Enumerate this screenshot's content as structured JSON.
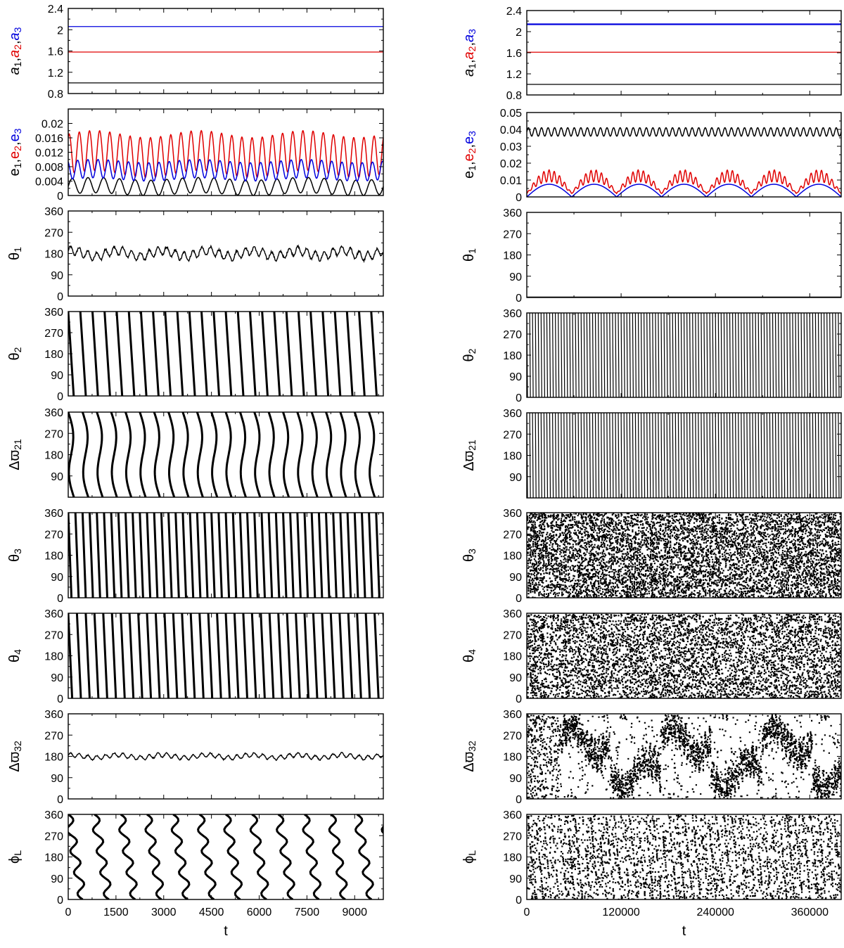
{
  "figure": {
    "columns": [
      {
        "xlabel": "t",
        "x_ticks": [
          0,
          1500,
          3000,
          4500,
          6000,
          7500,
          9000
        ],
        "x_range": [
          0,
          9900
        ]
      },
      {
        "xlabel": "t",
        "x_ticks": [
          0,
          120000,
          240000,
          360000
        ],
        "x_range": [
          0,
          400000
        ]
      }
    ],
    "colors": {
      "body1": "#000000",
      "body2": "#e00000",
      "body3": "#0000dd"
    }
  },
  "chart_data": [
    {
      "panel": "L-a",
      "type": "line",
      "ylabel_parts": [
        "a",
        "1",
        ",",
        "a",
        "2",
        ",",
        "a",
        "3"
      ],
      "ylim": [
        0.8,
        2.4
      ],
      "yticks": [
        "0.8",
        "1.2",
        "1.6",
        "2",
        "2.4"
      ],
      "series": [
        {
          "values": [
            1.0
          ]
        },
        {
          "values": [
            1.58
          ]
        },
        {
          "values": [
            2.06
          ]
        }
      ]
    },
    {
      "panel": "L-e",
      "type": "line",
      "ylabel_parts": [
        "e",
        "1",
        ",",
        "e",
        "2",
        ",",
        "e",
        "3"
      ],
      "ylim": [
        0,
        0.024
      ],
      "yticks": [
        "0",
        "0.004",
        "0.008",
        "0.012",
        "0.016",
        "0.02"
      ],
      "series": [
        {
          "min": 0.0,
          "max": 0.005
        },
        {
          "min": 0.005,
          "max": 0.018
        },
        {
          "min": 0.004,
          "max": 0.01
        }
      ]
    },
    {
      "panel": "L-th1",
      "type": "line",
      "ylabel": "θ",
      "ylabel_sub": "1",
      "ylim": [
        0,
        360
      ],
      "yticks": [
        "0",
        "90",
        "180",
        "270",
        "360"
      ],
      "series": [
        {
          "mean": 180,
          "amplitude": 30
        }
      ]
    },
    {
      "panel": "L-th2",
      "type": "scatter",
      "ylabel": "θ",
      "ylabel_sub": "2",
      "ylim": [
        0,
        360
      ],
      "yticks": [
        "0",
        "90",
        "180",
        "270",
        "360"
      ],
      "series": [
        {
          "cycles": 26
        }
      ]
    },
    {
      "panel": "L-dw21",
      "type": "scatter",
      "ylabel": "Δϖ",
      "ylabel_sub": "21",
      "ylim": [
        0,
        360
      ],
      "yticks": [
        "90",
        "180",
        "270",
        "360"
      ],
      "series": [
        {
          "cycles": 22
        }
      ]
    },
    {
      "panel": "L-th3",
      "type": "scatter",
      "ylabel": "θ",
      "ylabel_sub": "3",
      "ylim": [
        0,
        360
      ],
      "yticks": [
        "0",
        "90",
        "180",
        "270",
        "360"
      ],
      "series": [
        {
          "cycles": 44
        }
      ]
    },
    {
      "panel": "L-th4",
      "type": "scatter",
      "ylabel": "θ",
      "ylabel_sub": "4",
      "ylim": [
        0,
        360
      ],
      "yticks": [
        "0",
        "90",
        "180",
        "270",
        "360"
      ],
      "series": [
        {
          "cycles": 36
        }
      ]
    },
    {
      "panel": "L-dw32",
      "type": "line",
      "ylabel": "Δϖ",
      "ylabel_sub": "32",
      "ylim": [
        0,
        360
      ],
      "yticks": [
        "0",
        "90",
        "180",
        "270",
        "360"
      ],
      "series": [
        {
          "mean": 180,
          "amplitude": 15
        }
      ]
    },
    {
      "panel": "L-phiL",
      "type": "scatter",
      "ylabel": "ϕ",
      "ylabel_sub": "L",
      "ylim": [
        0,
        360
      ],
      "yticks": [
        "0",
        "90",
        "180",
        "270",
        "360"
      ],
      "series": [
        {
          "cycles": 12
        }
      ]
    },
    {
      "panel": "R-a",
      "type": "line",
      "ylabel_parts": [
        "a",
        "1",
        ",",
        "a",
        "2",
        ",",
        "a",
        "3"
      ],
      "ylim": [
        0.8,
        2.4
      ],
      "yticks": [
        "0.8",
        "1.2",
        "1.6",
        "2",
        "2.4"
      ],
      "series": [
        {
          "values": [
            1.0
          ]
        },
        {
          "values": [
            1.61
          ]
        },
        {
          "values": [
            2.14
          ]
        }
      ]
    },
    {
      "panel": "R-e",
      "type": "line",
      "ylabel_parts": [
        "e",
        "1",
        ",",
        "e",
        "2",
        ",",
        "e",
        "3"
      ],
      "ylim": [
        0,
        0.05
      ],
      "yticks": [
        "0",
        "0.01",
        "0.02",
        "0.03",
        "0.04",
        "0.05"
      ],
      "series": [
        {
          "min": 0.036,
          "max": 0.041
        },
        {
          "min": 0.002,
          "max": 0.016
        },
        {
          "min": 0.0,
          "max": 0.0075
        }
      ]
    },
    {
      "panel": "R-th1",
      "type": "line",
      "ylabel": "θ",
      "ylabel_sub": "1",
      "ylim": [
        0,
        360
      ],
      "yticks": [
        "0",
        "90",
        "180",
        "270",
        "360"
      ],
      "series": [
        {
          "mean": 0,
          "amplitude": 0
        }
      ]
    },
    {
      "panel": "R-th2",
      "type": "scatter",
      "ylabel": "θ",
      "ylabel_sub": "2",
      "ylim": [
        0,
        360
      ],
      "yticks": [
        "0",
        "90",
        "180",
        "270",
        "360"
      ],
      "series": [
        {
          "cycles": 110
        }
      ]
    },
    {
      "panel": "R-dw21",
      "type": "scatter",
      "ylabel": "Δϖ",
      "ylabel_sub": "21",
      "ylim": [
        0,
        360
      ],
      "yticks": [
        "90",
        "180",
        "270",
        "360"
      ],
      "series": [
        {
          "cycles": 110
        }
      ]
    },
    {
      "panel": "R-th3",
      "type": "scatter",
      "ylabel": "θ",
      "ylabel_sub": "3",
      "ylim": [
        0,
        360
      ],
      "yticks": [
        "0",
        "90",
        "180",
        "270",
        "360"
      ],
      "series": [
        {
          "chaotic": true
        }
      ]
    },
    {
      "panel": "R-th4",
      "type": "scatter",
      "ylabel": "θ",
      "ylabel_sub": "4",
      "ylim": [
        0,
        360
      ],
      "yticks": [
        "0",
        "90",
        "180",
        "270",
        "360"
      ],
      "series": [
        {
          "chaotic": true
        }
      ]
    },
    {
      "panel": "R-dw32",
      "type": "scatter",
      "ylabel": "Δϖ",
      "ylabel_sub": "32",
      "ylim": [
        0,
        360
      ],
      "yticks": [
        "0",
        "90",
        "180",
        "270",
        "360"
      ],
      "series": [
        {
          "chaotic": true
        }
      ]
    },
    {
      "panel": "R-phiL",
      "type": "scatter",
      "ylabel": "ϕ",
      "ylabel_sub": "L",
      "ylim": [
        0,
        360
      ],
      "yticks": [
        "0",
        "90",
        "180",
        "270",
        "360"
      ],
      "series": [
        {
          "chaotic": true
        }
      ]
    }
  ]
}
